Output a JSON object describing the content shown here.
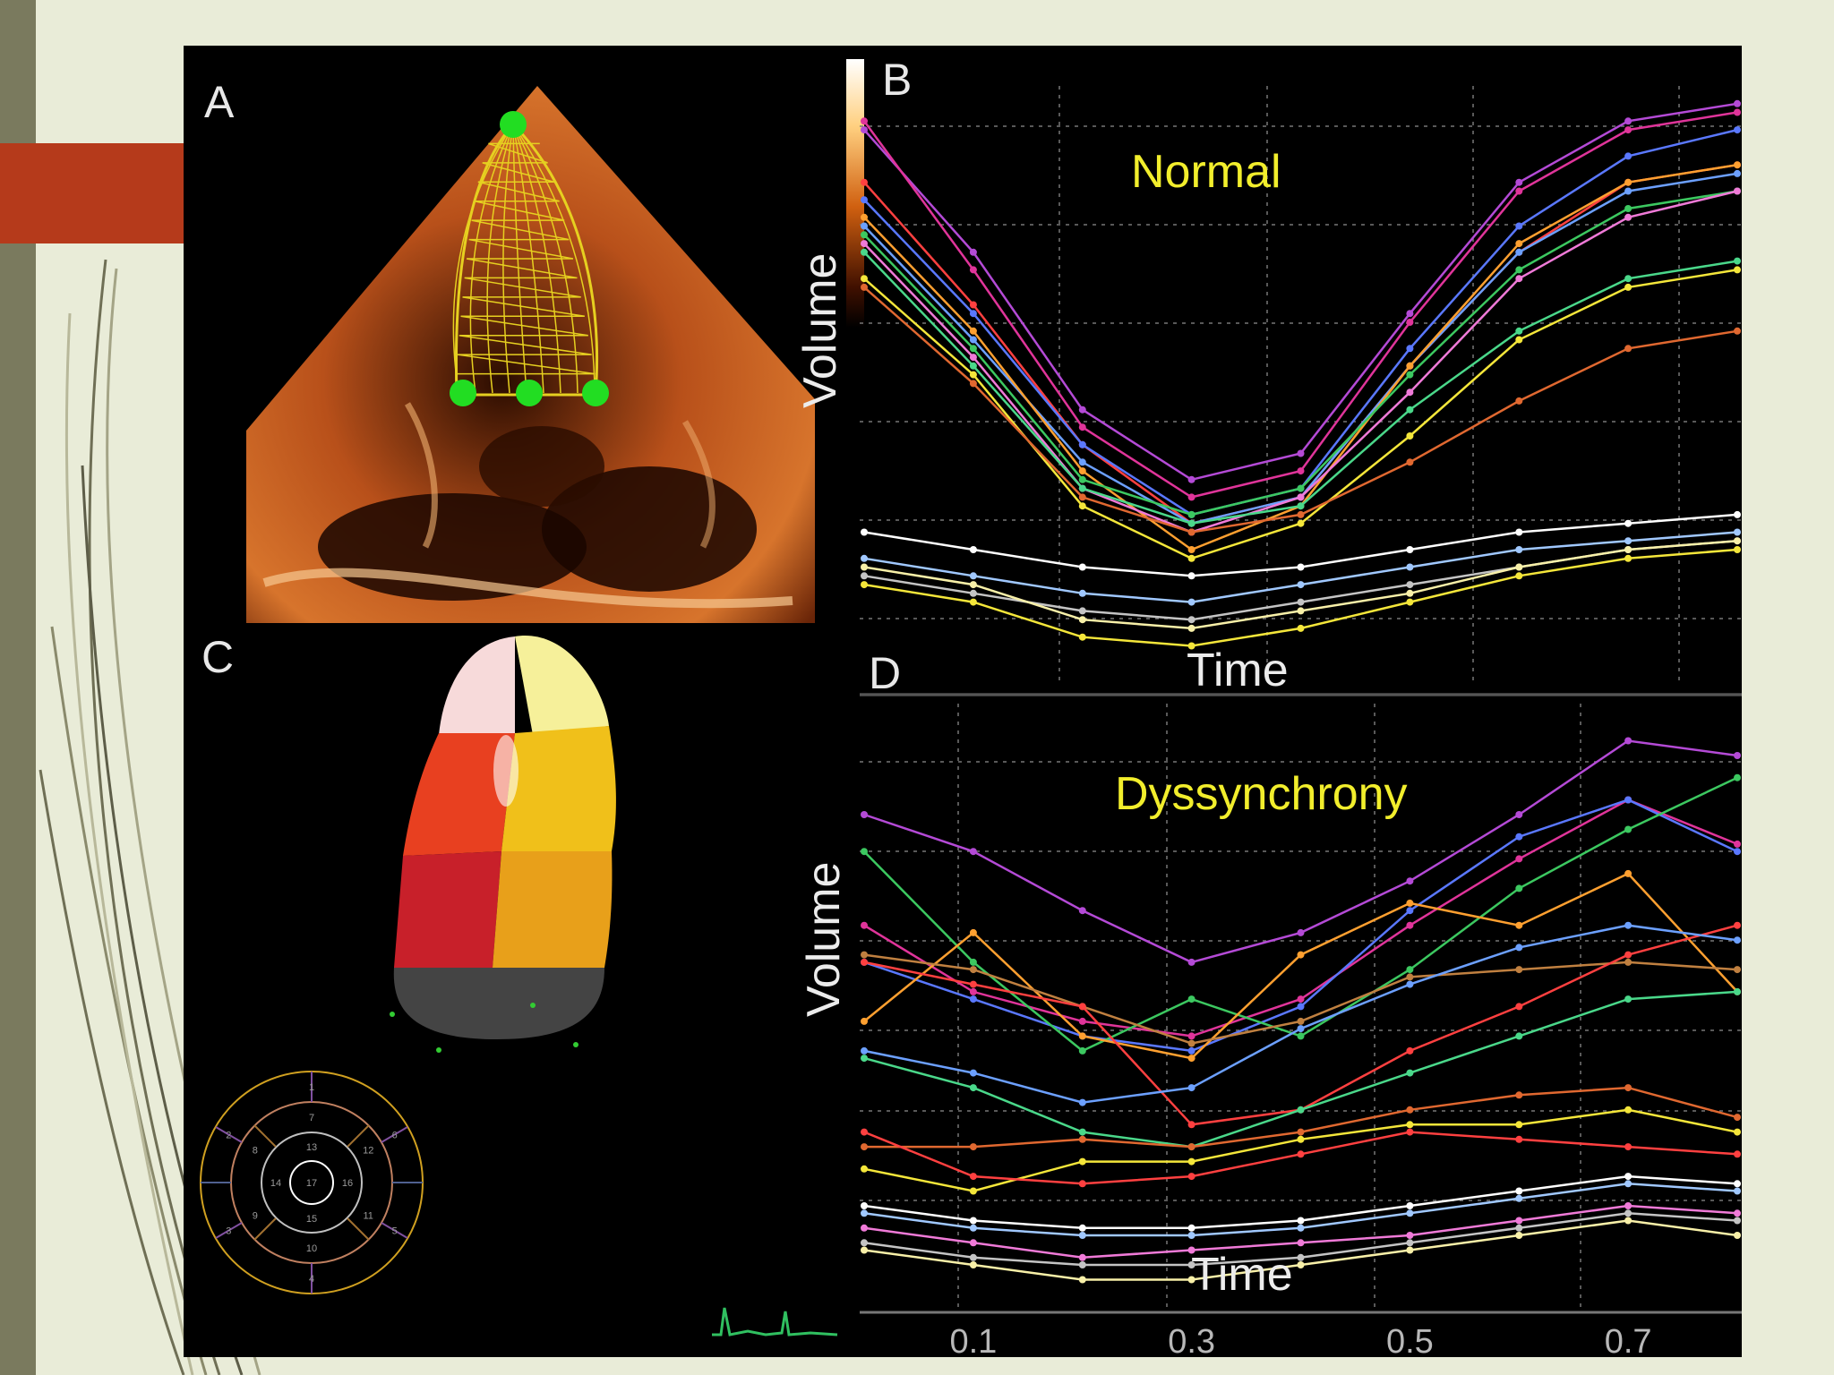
{
  "figure": {
    "panels": {
      "a": "A",
      "b": "B",
      "c": "C",
      "d": "D"
    },
    "b_label": "Normal",
    "d_label": "Dyssynchrony",
    "ylabel": "Volume",
    "xlabel": "Time",
    "bullseye_segments": [
      "1",
      "2",
      "3",
      "4",
      "5",
      "6",
      "7",
      "8",
      "9",
      "10",
      "11",
      "12",
      "13",
      "14",
      "15",
      "16",
      "17"
    ]
  },
  "chart_data": [
    {
      "panel": "B",
      "type": "line",
      "title": "Normal",
      "xlabel": "Time",
      "ylabel": "Volume",
      "grid": true,
      "x": [
        0.0,
        0.1,
        0.2,
        0.3,
        0.4,
        0.5,
        0.6,
        0.7,
        0.8
      ],
      "series": [
        {
          "color": "#b44ad6",
          "values": [
            94,
            66,
            30,
            14,
            20,
            52,
            82,
            96,
            100
          ]
        },
        {
          "color": "#e0349a",
          "values": [
            96,
            62,
            26,
            10,
            16,
            50,
            80,
            94,
            98
          ]
        },
        {
          "color": "#ff4040",
          "values": [
            82,
            54,
            22,
            4,
            10,
            40,
            66,
            82,
            86
          ]
        },
        {
          "color": "#5a78ff",
          "values": [
            78,
            52,
            22,
            6,
            12,
            44,
            72,
            88,
            94
          ]
        },
        {
          "color": "#6ca0ff",
          "values": [
            72,
            46,
            18,
            4,
            10,
            40,
            66,
            80,
            84
          ]
        },
        {
          "color": "#ffa030",
          "values": [
            74,
            48,
            16,
            -2,
            8,
            40,
            68,
            82,
            86
          ]
        },
        {
          "color": "#3cc860",
          "values": [
            70,
            44,
            14,
            6,
            12,
            38,
            62,
            76,
            80
          ]
        },
        {
          "color": "#f07ad8",
          "values": [
            68,
            42,
            12,
            2,
            10,
            34,
            60,
            74,
            80
          ]
        },
        {
          "color": "#4ad88a",
          "values": [
            66,
            40,
            12,
            4,
            8,
            30,
            48,
            60,
            64
          ]
        },
        {
          "color": "#f4e63a",
          "values": [
            60,
            38,
            8,
            -4,
            4,
            24,
            46,
            58,
            62
          ]
        },
        {
          "color": "#e06830",
          "values": [
            58,
            36,
            10,
            2,
            6,
            18,
            32,
            44,
            48
          ]
        },
        {
          "color": "#ffffff",
          "values": [
            2,
            -2,
            -6,
            -8,
            -6,
            -2,
            2,
            4,
            6
          ]
        },
        {
          "color": "#a0c8ff",
          "values": [
            -4,
            -8,
            -12,
            -14,
            -10,
            -6,
            -2,
            0,
            2
          ]
        },
        {
          "color": "#c4c4c4",
          "values": [
            -8,
            -12,
            -16,
            -18,
            -14,
            -10,
            -6,
            -2,
            0
          ]
        },
        {
          "color": "#f8f0a8",
          "values": [
            -6,
            -10,
            -18,
            -20,
            -16,
            -12,
            -6,
            -2,
            0
          ]
        },
        {
          "color": "#f4e63a",
          "values": [
            -10,
            -14,
            -22,
            -24,
            -20,
            -14,
            -8,
            -4,
            -2
          ]
        }
      ]
    },
    {
      "panel": "D",
      "type": "line",
      "title": "Dyssynchrony",
      "xlabel": "Time",
      "ylabel": "Volume",
      "grid": true,
      "x": [
        0.0,
        0.1,
        0.2,
        0.3,
        0.4,
        0.5,
        0.6,
        0.7,
        0.8
      ],
      "xticks": [
        "0.1",
        "0.3",
        "0.5",
        "0.7"
      ],
      "series": [
        {
          "color": "#b44ad6",
          "values": [
            100,
            90,
            74,
            60,
            68,
            82,
            100,
            120,
            116
          ]
        },
        {
          "color": "#e0349a",
          "values": [
            70,
            52,
            44,
            40,
            50,
            70,
            88,
            104,
            92
          ]
        },
        {
          "color": "#5a78ff",
          "values": [
            60,
            50,
            40,
            36,
            48,
            74,
            94,
            104,
            90
          ]
        },
        {
          "color": "#3cc860",
          "values": [
            90,
            60,
            36,
            50,
            40,
            58,
            80,
            96,
            110
          ]
        },
        {
          "color": "#ffa030",
          "values": [
            44,
            68,
            40,
            34,
            62,
            76,
            70,
            84,
            52
          ]
        },
        {
          "color": "#c08040",
          "values": [
            62,
            58,
            48,
            38,
            44,
            56,
            58,
            60,
            58
          ]
        },
        {
          "color": "#ff4040",
          "values": [
            60,
            54,
            48,
            16,
            20,
            36,
            48,
            62,
            70
          ]
        },
        {
          "color": "#6ca0ff",
          "values": [
            36,
            30,
            22,
            26,
            42,
            54,
            64,
            70,
            66
          ]
        },
        {
          "color": "#4ad88a",
          "values": [
            34,
            26,
            14,
            10,
            20,
            30,
            40,
            50,
            52
          ]
        },
        {
          "color": "#e06830",
          "values": [
            10,
            10,
            12,
            10,
            14,
            20,
            24,
            26,
            18
          ]
        },
        {
          "color": "#f4e63a",
          "values": [
            4,
            -2,
            6,
            6,
            12,
            16,
            16,
            20,
            14
          ]
        },
        {
          "color": "#ff4040",
          "values": [
            14,
            2,
            0,
            2,
            8,
            14,
            12,
            10,
            8
          ]
        },
        {
          "color": "#ffffff",
          "values": [
            -6,
            -10,
            -12,
            -12,
            -10,
            -6,
            -2,
            2,
            0
          ]
        },
        {
          "color": "#a0c8ff",
          "values": [
            -8,
            -12,
            -14,
            -14,
            -12,
            -8,
            -4,
            0,
            -2
          ]
        },
        {
          "color": "#f07ad8",
          "values": [
            -12,
            -16,
            -20,
            -18,
            -16,
            -14,
            -10,
            -6,
            -8
          ]
        },
        {
          "color": "#c4c4c4",
          "values": [
            -16,
            -20,
            -22,
            -22,
            -20,
            -16,
            -12,
            -8,
            -10
          ]
        },
        {
          "color": "#f8f0a8",
          "values": [
            -18,
            -22,
            -26,
            -26,
            -22,
            -18,
            -14,
            -10,
            -14
          ]
        }
      ]
    }
  ]
}
